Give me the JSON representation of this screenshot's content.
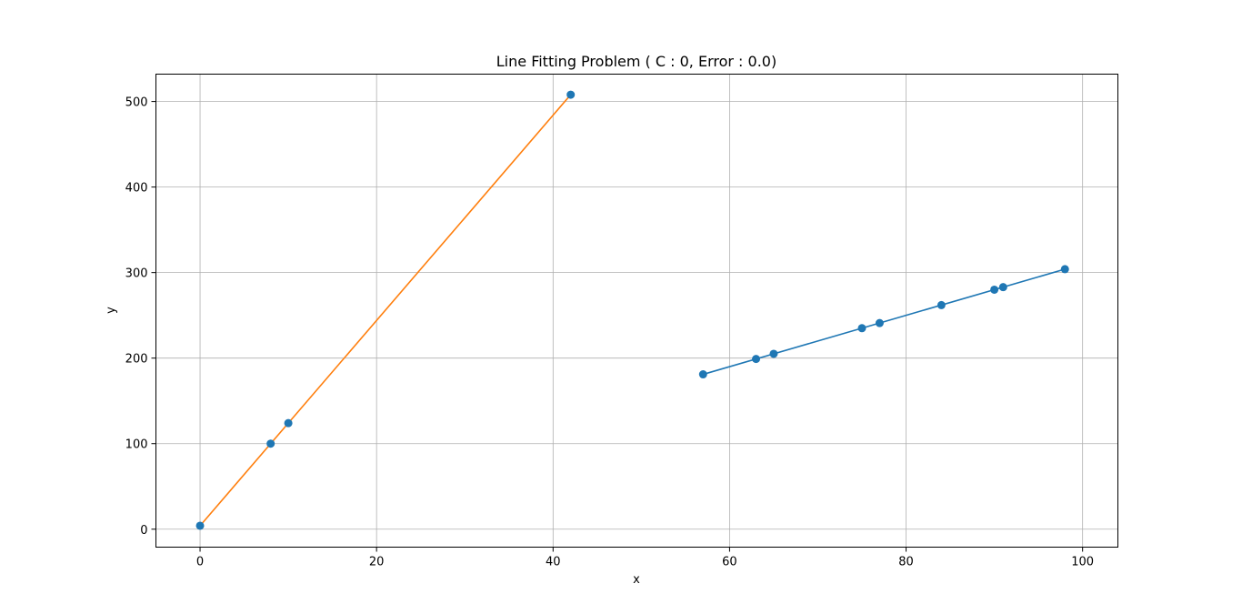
{
  "chart_data": {
    "type": "scatter",
    "title": "Line Fitting Problem  ( C : 0, Error : 0.0)",
    "xlabel": "x",
    "ylabel": "y",
    "xlim": [
      -5,
      104
    ],
    "ylim": [
      -21,
      532
    ],
    "xticks": [
      0,
      20,
      40,
      60,
      80,
      100
    ],
    "yticks": [
      0,
      100,
      200,
      300,
      400,
      500
    ],
    "grid": true,
    "points": {
      "color": "#1f77b4",
      "x": [
        0,
        8,
        10,
        42,
        57,
        63,
        65,
        75,
        77,
        84,
        90,
        91,
        98
      ],
      "y": [
        4,
        100,
        124,
        508,
        181,
        199,
        205,
        235,
        241,
        262,
        280,
        283,
        304
      ]
    },
    "lines": [
      {
        "color": "#ff7f0e",
        "x": [
          0,
          42
        ],
        "y": [
          4,
          508
        ]
      },
      {
        "color": "#1f77b4",
        "x": [
          57,
          98
        ],
        "y": [
          181,
          304
        ]
      }
    ]
  }
}
